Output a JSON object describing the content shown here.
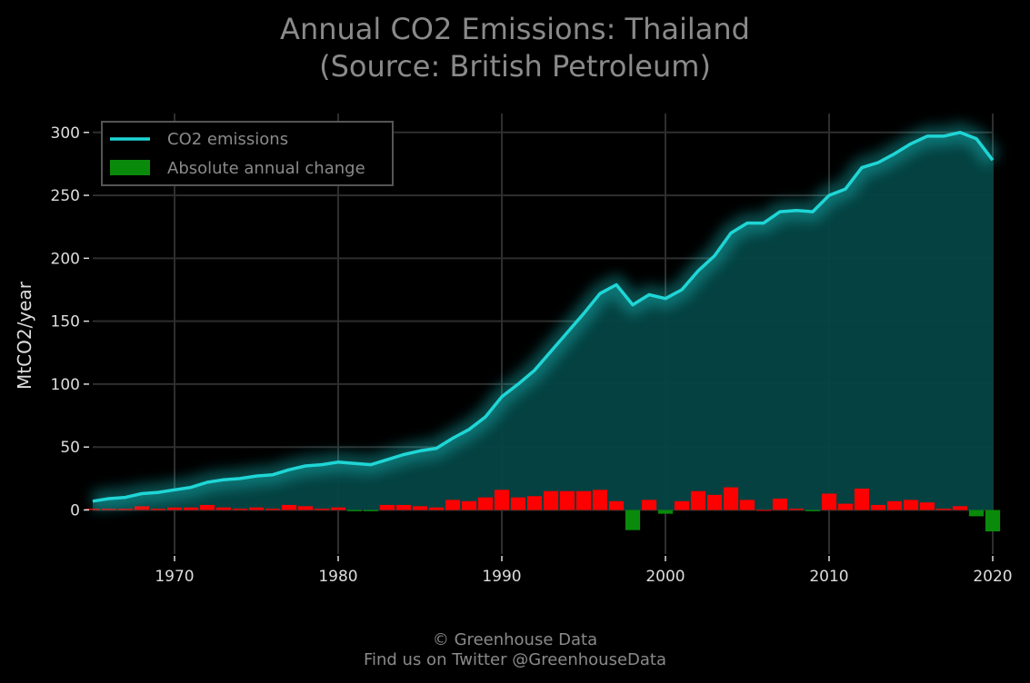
{
  "title_line1": "Annual CO2 Emissions: Thailand",
  "title_line2": "(Source: British Petroleum)",
  "footer_line1": "© Greenhouse Data",
  "footer_line2": "Find us on Twitter @GreenhouseData",
  "colors": {
    "background": "#000000",
    "line": "#1fd6d6",
    "fill": "#054545",
    "increase": "#ff0000",
    "decrease": "#0a8a0a",
    "grid": "#2e2e2e",
    "text": "#dddddd",
    "muted": "#8a8a8a"
  },
  "chart_data": {
    "type": "line",
    "title": "Annual CO2 Emissions: Thailand (Source: British Petroleum)",
    "xlabel": "",
    "ylabel": "MtCO2/year",
    "xlim": [
      1965,
      2020
    ],
    "ylim": [
      -35,
      315
    ],
    "xticks": [
      1970,
      1980,
      1990,
      2000,
      2010,
      2020
    ],
    "yticks": [
      0,
      50,
      100,
      150,
      200,
      250,
      300
    ],
    "grid": true,
    "legend_position": "top-left",
    "legend": [
      "CO2 emissions",
      "Absolute annual change"
    ],
    "x": [
      1965,
      1966,
      1967,
      1968,
      1969,
      1970,
      1971,
      1972,
      1973,
      1974,
      1975,
      1976,
      1977,
      1978,
      1979,
      1980,
      1981,
      1982,
      1983,
      1984,
      1985,
      1986,
      1987,
      1988,
      1989,
      1990,
      1991,
      1992,
      1993,
      1994,
      1995,
      1996,
      1997,
      1998,
      1999,
      2000,
      2001,
      2002,
      2003,
      2004,
      2005,
      2006,
      2007,
      2008,
      2009,
      2010,
      2011,
      2012,
      2013,
      2014,
      2015,
      2016,
      2017,
      2018,
      2019,
      2020
    ],
    "series": [
      {
        "name": "CO2 emissions",
        "type": "line",
        "values": [
          7,
          9,
          10,
          13,
          14,
          16,
          18,
          22,
          24,
          25,
          27,
          28,
          32,
          35,
          36,
          38,
          37,
          36,
          40,
          44,
          47,
          49,
          57,
          64,
          74,
          90,
          100,
          111,
          126,
          141,
          156,
          172,
          179,
          163,
          171,
          168,
          175,
          190,
          202,
          220,
          228,
          228,
          237,
          238,
          237,
          250,
          255,
          272,
          276,
          283,
          291,
          297,
          297,
          300,
          295,
          278
        ]
      },
      {
        "name": "Absolute annual change",
        "type": "bar",
        "values": [
          1,
          1,
          1,
          3,
          1,
          2,
          2,
          4,
          2,
          1,
          2,
          1,
          4,
          3,
          1,
          2,
          -1,
          -1,
          4,
          4,
          3,
          2,
          8,
          7,
          10,
          16,
          10,
          11,
          15,
          15,
          15,
          16,
          7,
          -16,
          8,
          -3,
          7,
          15,
          12,
          18,
          8,
          0,
          9,
          1,
          -1,
          13,
          5,
          17,
          4,
          7,
          8,
          6,
          1,
          3,
          -5,
          -17
        ]
      }
    ]
  }
}
